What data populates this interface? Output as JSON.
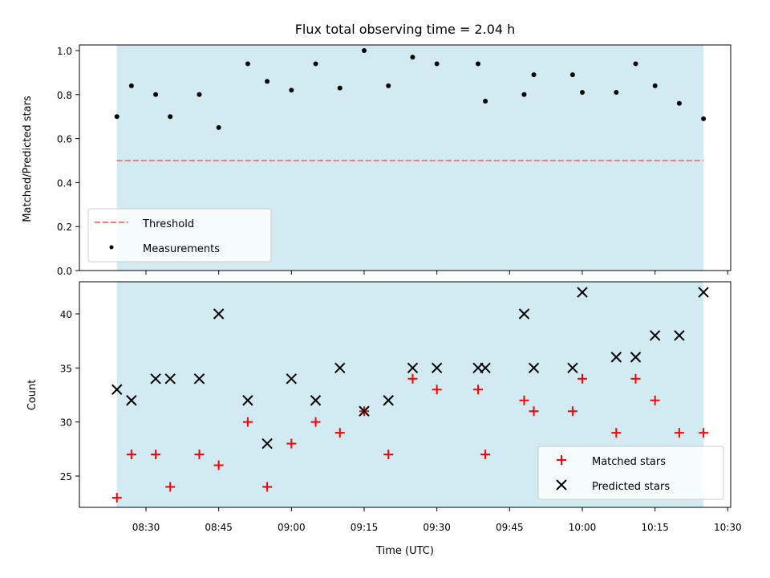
{
  "chart_data": {
    "title": "Flux total observing time = 2.04 h",
    "xlabel": "Time (UTC)",
    "x_ticks": [
      "08:30",
      "08:45",
      "09:00",
      "09:15",
      "09:30",
      "09:45",
      "10:00",
      "10:15",
      "10:30"
    ],
    "shaded_region": {
      "from": "08:24",
      "to": "10:25",
      "color": "#add8e6"
    },
    "top": {
      "type": "scatter",
      "ylabel": "Matched/Predicted stars",
      "ylim": [
        0.0,
        1.0
      ],
      "y_ticks": [
        "0.0",
        "0.2",
        "0.4",
        "0.6",
        "0.8",
        "1.0"
      ],
      "threshold": {
        "name": "Threshold",
        "value": 0.5,
        "color": "#f08080"
      },
      "series": [
        {
          "name": "Measurements",
          "color": "#000000",
          "x": [
            "08:24",
            "08:27",
            "08:32",
            "08:35",
            "08:41",
            "08:45",
            "08:51",
            "08:55",
            "09:00",
            "09:05",
            "09:10",
            "09:15",
            "09:20",
            "09:25",
            "09:30",
            "09:38.5",
            "09:40",
            "09:48",
            "09:50",
            "09:58",
            "10:00",
            "10:07",
            "10:11",
            "10:15",
            "10:20",
            "10:25"
          ],
          "y": [
            0.7,
            0.84,
            0.8,
            0.7,
            0.8,
            0.65,
            0.94,
            0.86,
            0.82,
            0.94,
            0.83,
            1.0,
            0.84,
            0.97,
            0.94,
            0.94,
            0.77,
            0.8,
            0.89,
            0.89,
            0.81,
            0.81,
            0.94,
            0.84,
            0.76,
            0.69
          ]
        }
      ],
      "legend": {
        "position": "lower-left",
        "entries": [
          "Threshold",
          "Measurements"
        ]
      }
    },
    "bottom": {
      "type": "scatter",
      "ylabel": "Count",
      "ylim": [
        22,
        43
      ],
      "y_ticks": [
        "25",
        "30",
        "35",
        "40"
      ],
      "x": [
        "08:24",
        "08:27",
        "08:32",
        "08:35",
        "08:41",
        "08:45",
        "08:51",
        "08:55",
        "09:00",
        "09:05",
        "09:10",
        "09:15",
        "09:20",
        "09:25",
        "09:30",
        "09:38.5",
        "09:40",
        "09:48",
        "09:50",
        "09:58",
        "10:00",
        "10:07",
        "10:11",
        "10:15",
        "10:20",
        "10:25"
      ],
      "series": [
        {
          "name": "Matched stars",
          "marker": "plus",
          "color": "#ff0000",
          "values": [
            23,
            27,
            27,
            24,
            27,
            26,
            30,
            24,
            28,
            30,
            29,
            31,
            27,
            34,
            33,
            33,
            27,
            32,
            31,
            31,
            34,
            29,
            34,
            32,
            29,
            29
          ]
        },
        {
          "name": "Predicted stars",
          "marker": "cross",
          "color": "#000000",
          "values": [
            33,
            32,
            34,
            34,
            34,
            40,
            32,
            28,
            34,
            32,
            35,
            31,
            32,
            35,
            35,
            35,
            35,
            40,
            35,
            35,
            42,
            36,
            36,
            38,
            38,
            42
          ]
        }
      ],
      "legend": {
        "position": "lower-right",
        "entries": [
          "Matched stars",
          "Predicted stars"
        ]
      }
    }
  }
}
